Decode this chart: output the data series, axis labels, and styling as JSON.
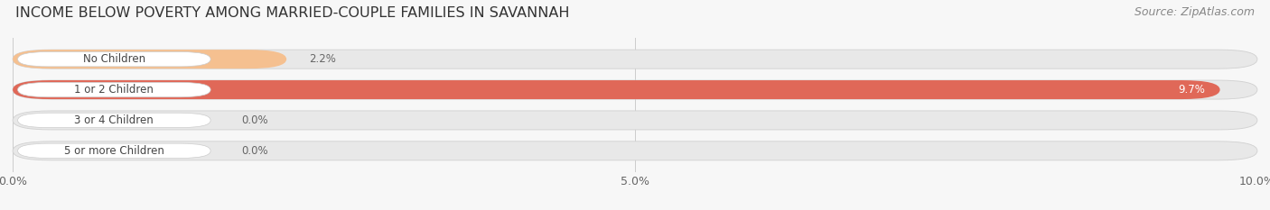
{
  "title": "INCOME BELOW POVERTY AMONG MARRIED-COUPLE FAMILIES IN SAVANNAH",
  "source": "Source: ZipAtlas.com",
  "categories": [
    "No Children",
    "1 or 2 Children",
    "3 or 4 Children",
    "5 or more Children"
  ],
  "values": [
    2.2,
    9.7,
    0.0,
    0.0
  ],
  "bar_colors": [
    "#f5c090",
    "#e06858",
    "#a8b8d8",
    "#c8a8d0"
  ],
  "track_color": "#e8e8e8",
  "track_edge_color": "#d0d0d0",
  "xlim": [
    0,
    10.0
  ],
  "xticks": [
    0.0,
    5.0,
    10.0
  ],
  "xticklabels": [
    "0.0%",
    "5.0%",
    "10.0%"
  ],
  "background_color": "#f7f7f7",
  "bar_height": 0.62,
  "label_badge_color": "#ffffff",
  "label_text_color": "#444444",
  "value_color_inside": "#ffffff",
  "value_color_outside": "#666666",
  "title_fontsize": 11.5,
  "source_fontsize": 9,
  "label_fontsize": 8.5,
  "value_fontsize": 8.5,
  "tick_fontsize": 9,
  "grid_color": "#cccccc"
}
